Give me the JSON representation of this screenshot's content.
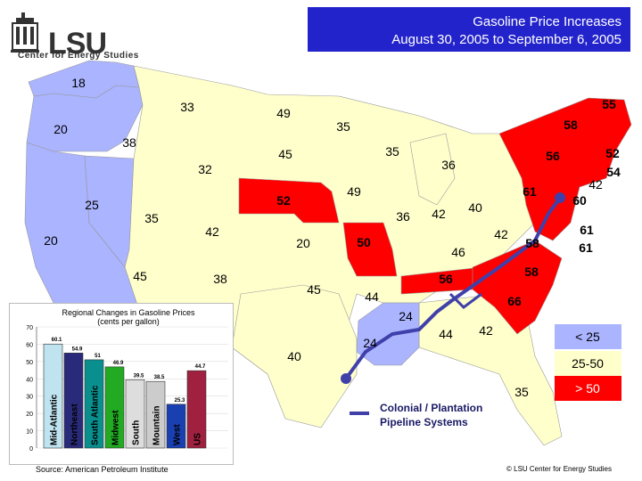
{
  "title": {
    "line1": "Gasoline Price Increases",
    "line2": "August 30, 2005 to September 6, 2005"
  },
  "logo": {
    "text": "LSU",
    "subtitle": "Center for Energy Studies"
  },
  "colors": {
    "low": "#aab4ff",
    "mid": "#ffffcc",
    "high": "#ff0000",
    "pipeline": "#4040aa",
    "title_bg": "#2323cc"
  },
  "map_labels": [
    {
      "id": "wa",
      "text": "18"
    },
    {
      "id": "or",
      "text": "20"
    },
    {
      "id": "ca",
      "text": "20"
    },
    {
      "id": "nv",
      "text": "25"
    },
    {
      "id": "id",
      "text": "38"
    },
    {
      "id": "mt",
      "text": "33"
    },
    {
      "id": "wy",
      "text": "32"
    },
    {
      "id": "ut",
      "text": "35"
    },
    {
      "id": "az",
      "text": "45"
    },
    {
      "id": "co",
      "text": "42"
    },
    {
      "id": "nm",
      "text": "38"
    },
    {
      "id": "nd",
      "text": "49"
    },
    {
      "id": "sd",
      "text": "45"
    },
    {
      "id": "ne",
      "text": "52"
    },
    {
      "id": "ks",
      "text": "20"
    },
    {
      "id": "ok",
      "text": "45"
    },
    {
      "id": "tx",
      "text": "40"
    },
    {
      "id": "mn",
      "text": "35"
    },
    {
      "id": "ia",
      "text": "49"
    },
    {
      "id": "mo",
      "text": "50"
    },
    {
      "id": "ar",
      "text": "44"
    },
    {
      "id": "la",
      "text": "24"
    },
    {
      "id": "wi",
      "text": "35"
    },
    {
      "id": "il",
      "text": "36"
    },
    {
      "id": "mi",
      "text": "36"
    },
    {
      "id": "in",
      "text": "42"
    },
    {
      "id": "oh",
      "text": "40"
    },
    {
      "id": "ky",
      "text": "46"
    },
    {
      "id": "tn",
      "text": "56"
    },
    {
      "id": "ms",
      "text": "24"
    },
    {
      "id": "al",
      "text": "44"
    },
    {
      "id": "ga",
      "text": "42"
    },
    {
      "id": "fl",
      "text": "35"
    },
    {
      "id": "sc",
      "text": "66"
    },
    {
      "id": "nc",
      "text": "58"
    },
    {
      "id": "va",
      "text": "58"
    },
    {
      "id": "wv",
      "text": "42"
    },
    {
      "id": "pa",
      "text": "61"
    },
    {
      "id": "ny",
      "text": "56"
    },
    {
      "id": "vt",
      "text": "58"
    },
    {
      "id": "me",
      "text": "55"
    },
    {
      "id": "nh",
      "text": "52"
    },
    {
      "id": "ma",
      "text": "54"
    },
    {
      "id": "ri",
      "text": "42"
    },
    {
      "id": "ct",
      "text": "60"
    },
    {
      "id": "md",
      "text": "61"
    },
    {
      "id": "de",
      "text": "61"
    }
  ],
  "legend": {
    "low": "< 25",
    "mid": "25-50",
    "high": "> 50",
    "pipeline": "Colonial / Plantation\nPipeline Systems",
    "pipeline_line1": "Colonial / Plantation",
    "pipeline_line2": "Pipeline Systems"
  },
  "chart_data": {
    "type": "bar",
    "title": "Regional Changes in Gasoline Prices",
    "subtitle": "(cents per gallon)",
    "categories": [
      "Mid-Atlantic",
      "Northeast",
      "South Atlantic",
      "Midwest",
      "South",
      "Mountain",
      "West",
      "US"
    ],
    "values": [
      60.1,
      54.9,
      51,
      46.9,
      39.5,
      38.5,
      25.3,
      44.7
    ],
    "value_labels": [
      "60.1",
      "54.9",
      "51",
      "46.9",
      "39.5",
      "38.5",
      "25.3",
      "44.7"
    ],
    "colors": [
      "#bfe3ef",
      "#2a2a7a",
      "#0a8f8f",
      "#22aa22",
      "#dddddd",
      "#cccccc",
      "#1a3fb0",
      "#a02040"
    ],
    "yticks": [
      "0",
      "10",
      "20",
      "30",
      "40",
      "50",
      "60",
      "70"
    ],
    "ylim": [
      0,
      70
    ]
  },
  "source": "Source: American Petroleum Institute",
  "credit": "© LSU Center for Energy Studies"
}
